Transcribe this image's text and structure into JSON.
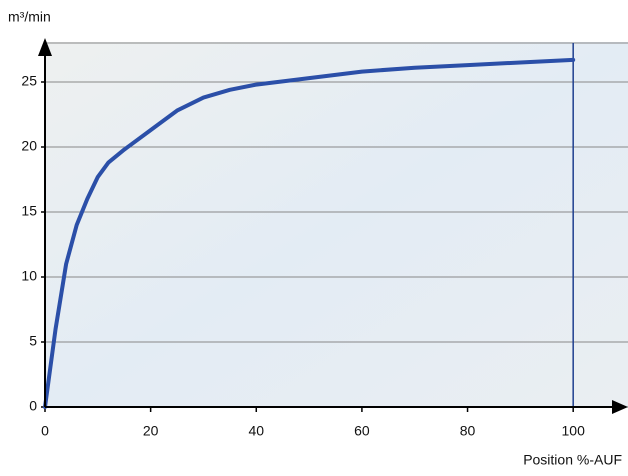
{
  "chart_data": {
    "type": "line",
    "y_label": "m³/min",
    "x_label": "Position %-AUF",
    "x": [
      0,
      2,
      4,
      6,
      8,
      10,
      12,
      15,
      20,
      25,
      30,
      35,
      40,
      50,
      60,
      70,
      80,
      90,
      100
    ],
    "series": [
      {
        "color": "#2b4fa8",
        "values": [
          0,
          6,
          11,
          14,
          16,
          17.7,
          18.8,
          19.8,
          21.3,
          22.8,
          23.8,
          24.4,
          24.8,
          25.3,
          25.8,
          26.1,
          26.3,
          26.5,
          26.7
        ]
      }
    ],
    "xlim": [
      0,
      110
    ],
    "ylim": [
      0,
      28
    ],
    "xticks": [
      0,
      20,
      40,
      60,
      80,
      100
    ],
    "yticks": [
      0,
      5,
      10,
      15,
      20,
      25
    ],
    "grid": true,
    "vline": 100,
    "vline_color": "#1f3f8f"
  }
}
